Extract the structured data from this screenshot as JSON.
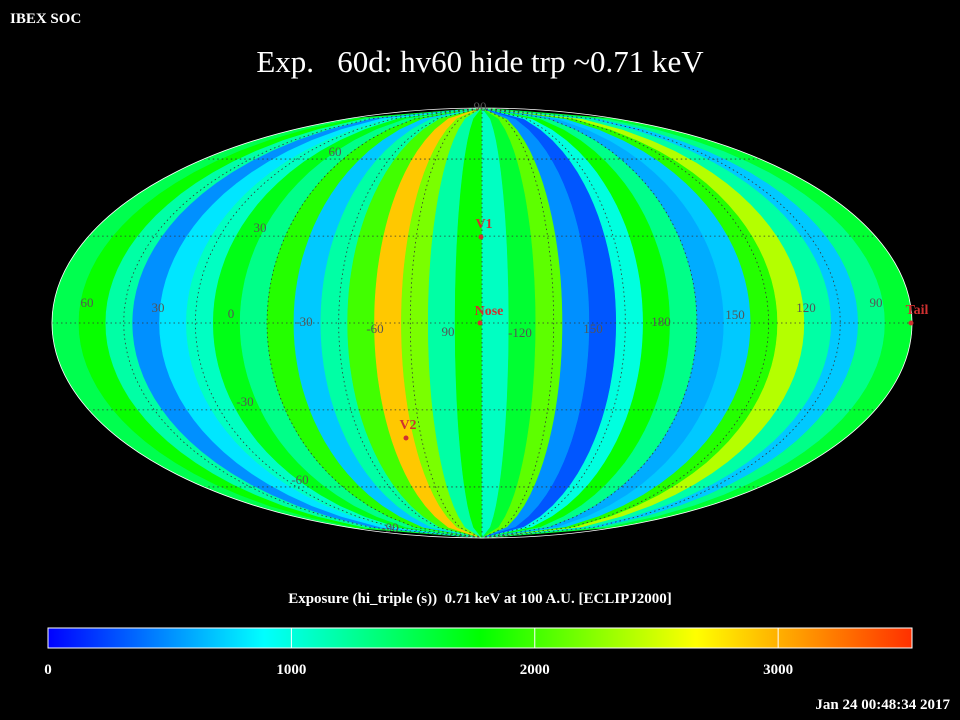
{
  "header": {
    "app": "IBEX SOC",
    "title": "Exp.   60d: hv60 hide trp ~0.71 keV",
    "timestamp": "Jan 24 00:48:34 2017"
  },
  "map": {
    "exposure": [
      1500,
      1800,
      1200,
      500,
      800,
      1100,
      1700,
      1300,
      1900,
      700,
      1200,
      2000,
      2900,
      2200,
      1200,
      1800,
      1100,
      1600,
      2100,
      500,
      300,
      1000,
      1800,
      1300,
      600,
      700,
      1900,
      2400,
      1200,
      700,
      1300,
      1600
    ],
    "grid": true,
    "grid_labels": [
      "90",
      "60",
      "30",
      "-30",
      "-60",
      "-90",
      "60",
      "30",
      "0",
      "-30",
      "-60",
      "90",
      "-120",
      "150",
      "180",
      "150",
      "120",
      "90"
    ],
    "markers": [
      "V1",
      "Nose",
      "V2",
      "Tail"
    ],
    "marker_color": "#d03030"
  },
  "colorbar": {
    "label": "Exposure (hi_triple (s))  0.71 keV at 100 A.U. [ECLIPJ2000]",
    "lim": [
      0,
      3550
    ],
    "ticks": [
      0,
      1000,
      2000,
      3000
    ],
    "colors": [
      "#0000ff",
      "#00ffff",
      "#00ff00",
      "#ffff00",
      "#ff3000"
    ]
  }
}
